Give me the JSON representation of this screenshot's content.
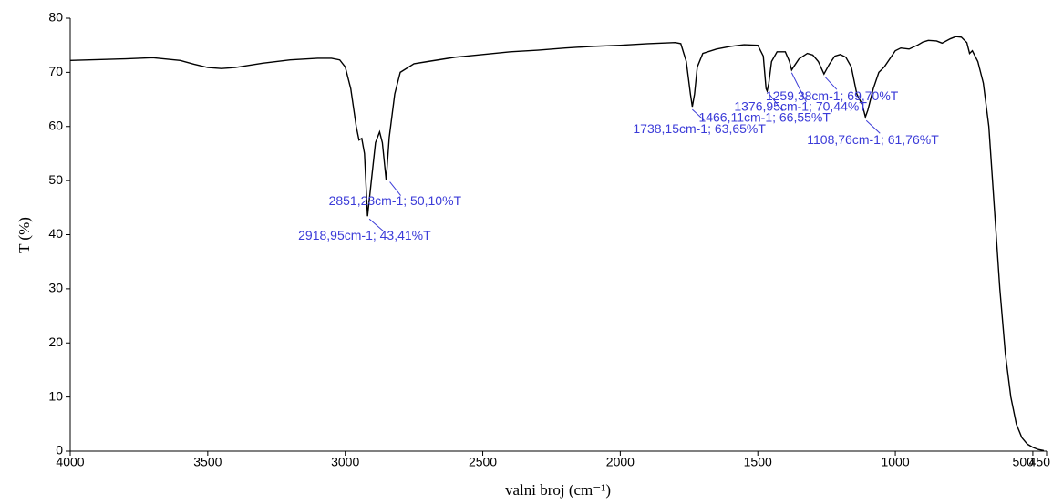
{
  "chart_data": {
    "type": "line",
    "xlabel": "valni broj (cm⁻¹)",
    "ylabel": "T (%)",
    "xlim": [
      4000,
      450
    ],
    "ylim": [
      0,
      80
    ],
    "xticks": [
      4000,
      3500,
      3000,
      2500,
      2000,
      1500,
      1000,
      500,
      450
    ],
    "yticks": [
      0,
      10,
      20,
      30,
      40,
      50,
      60,
      70,
      80
    ],
    "color": "#000000",
    "annotation_color": "#3b3bd8",
    "x": [
      4000,
      3800,
      3700,
      3600,
      3550,
      3500,
      3450,
      3400,
      3300,
      3200,
      3100,
      3050,
      3020,
      3000,
      2980,
      2960,
      2950,
      2940,
      2930,
      2918.95,
      2905,
      2890,
      2875,
      2865,
      2851.23,
      2840,
      2820,
      2800,
      2750,
      2700,
      2600,
      2500,
      2400,
      2300,
      2200,
      2100,
      2000,
      1900,
      1800,
      1780,
      1760,
      1745,
      1738.15,
      1730,
      1720,
      1700,
      1650,
      1600,
      1550,
      1500,
      1480,
      1470,
      1466.11,
      1460,
      1450,
      1430,
      1400,
      1385,
      1376.95,
      1370,
      1350,
      1320,
      1300,
      1280,
      1259.38,
      1240,
      1220,
      1200,
      1180,
      1160,
      1140,
      1120,
      1108.76,
      1100,
      1080,
      1060,
      1040,
      1020,
      1000,
      980,
      950,
      920,
      900,
      880,
      850,
      830,
      800,
      780,
      760,
      740,
      730,
      720,
      700,
      680,
      660,
      640,
      620,
      600,
      580,
      560,
      540,
      520,
      500,
      480,
      460
    ],
    "values": [
      72.2,
      72.5,
      72.7,
      72.2,
      71.5,
      70.9,
      70.7,
      70.9,
      71.7,
      72.3,
      72.6,
      72.6,
      72.3,
      71,
      67,
      60,
      57.5,
      57.8,
      55,
      43.41,
      50,
      57,
      59,
      57,
      50.1,
      58,
      66,
      70,
      71.6,
      72,
      72.8,
      73.3,
      73.8,
      74.1,
      74.5,
      74.8,
      75,
      75.3,
      75.5,
      75.3,
      72,
      66,
      63.65,
      66,
      71,
      73.5,
      74.3,
      74.8,
      75.1,
      75,
      73,
      67,
      66.55,
      68,
      72,
      73.8,
      73.8,
      72,
      70.44,
      71,
      72.5,
      73.5,
      73.2,
      72,
      69.7,
      71.5,
      73,
      73.3,
      72.8,
      71,
      66,
      64,
      61.76,
      63,
      67,
      70,
      71,
      72.5,
      74,
      74.5,
      74.3,
      75,
      75.6,
      75.9,
      75.8,
      75.4,
      76.2,
      76.6,
      76.5,
      75.5,
      73.5,
      74,
      72,
      68,
      60,
      45,
      30,
      18,
      10,
      5,
      2.5,
      1.3,
      0.7,
      0.3,
      0.1
    ],
    "annotations": [
      {
        "label": "2851,23cm-1; 50,10%T",
        "x": 2851.23,
        "y": 50.1
      },
      {
        "label": "2918,95cm-1; 43,41%T",
        "x": 2918.95,
        "y": 43.41
      },
      {
        "label": "1738,15cm-1; 63,65%T",
        "x": 1738.15,
        "y": 63.65
      },
      {
        "label": "1466,11cm-1; 66,55%T",
        "x": 1466.11,
        "y": 66.55
      },
      {
        "label": "1376,95cm-1; 70,44%T",
        "x": 1376.95,
        "y": 70.44
      },
      {
        "label": "1259,38cm-1; 69,70%T",
        "x": 1259.38,
        "y": 69.7
      },
      {
        "label": "1108,76cm-1; 61,76%T",
        "x": 1108.76,
        "y": 61.76
      }
    ]
  }
}
